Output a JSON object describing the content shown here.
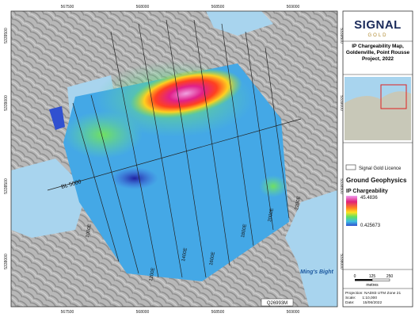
{
  "map": {
    "top_eastings": [
      "567500",
      "568000",
      "568500",
      "569000"
    ],
    "bottom_eastings": [
      "567500",
      "568000",
      "568500",
      "569000"
    ],
    "left_northings": [
      "5339500",
      "5339000",
      "5338500",
      "5338000"
    ],
    "right_northings": [
      "5339500",
      "5339000",
      "5338500",
      "5338000"
    ],
    "baseline_label": "BL 5000",
    "line_labels": [
      "1000E",
      "1200E",
      "1400E",
      "1600E",
      "1800E",
      "2000E",
      "2200E"
    ],
    "place_label": "Ming's Bight",
    "map_id": "Q26993M"
  },
  "legend": {
    "logo_top": "SIGNAL",
    "logo_bottom": "GOLD",
    "title": "IP Chargeability Map, Goldenville, Point Rousse Project, 2022",
    "licence": "Signal Gold Licence",
    "section": "Ground Geophysics",
    "layer": "IP Chargeability",
    "max": "45.4836",
    "min": "0.425673",
    "scale_ticks": [
      "0",
      "125",
      "250"
    ],
    "scale_unit": "metres",
    "projection": "Projection: NAD83 UTM Zone 21",
    "scale": "Scale:      1:10,000",
    "date": "Date:        15/06/2022"
  }
}
